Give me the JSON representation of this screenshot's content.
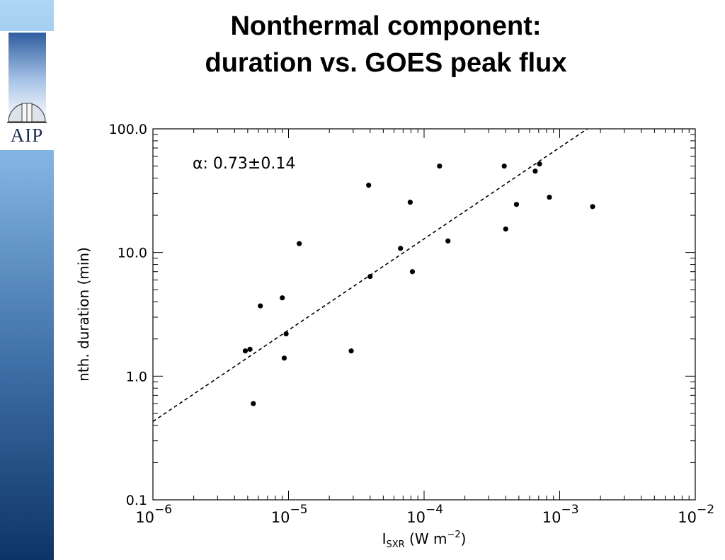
{
  "slide": {
    "title_line1": "Nonthermal component:",
    "title_line2": "duration vs. GOES peak flux",
    "logo_text": "AIP",
    "accent_colors": [
      "#aed5f3",
      "#3e6fa6",
      "#0d3468"
    ]
  },
  "chart_data": {
    "type": "scatter",
    "title": "Nonthermal component: duration vs. GOES peak flux",
    "xlabel": "I_SXR (W m^-2)",
    "ylabel": "nth. duration  (min)",
    "xscale": "log",
    "yscale": "log",
    "xlim": [
      1e-06,
      0.01
    ],
    "ylim": [
      0.1,
      100
    ],
    "xticks": [
      {
        "value": 1e-06,
        "base": "10",
        "exp": "−6"
      },
      {
        "value": 1e-05,
        "base": "10",
        "exp": "−5"
      },
      {
        "value": 0.0001,
        "base": "10",
        "exp": "−4"
      },
      {
        "value": 0.001,
        "base": "10",
        "exp": "−3"
      },
      {
        "value": 0.01,
        "base": "10",
        "exp": "−2"
      }
    ],
    "yticks": [
      {
        "value": 0.1,
        "label": "0.1"
      },
      {
        "value": 1,
        "label": "1.0"
      },
      {
        "value": 10,
        "label": "10.0"
      },
      {
        "value": 100,
        "label": "100.0"
      }
    ],
    "annotation": "α: 0.73±0.14",
    "fit_line": {
      "style": "dashed",
      "points": [
        [
          1e-06,
          0.43
        ],
        [
          0.0016,
          100
        ]
      ]
    },
    "points": [
      {
        "x": 4.8e-06,
        "y": 1.6
      },
      {
        "x": 5.2e-06,
        "y": 1.65
      },
      {
        "x": 5.5e-06,
        "y": 0.6
      },
      {
        "x": 6.2e-06,
        "y": 3.7
      },
      {
        "x": 9e-06,
        "y": 4.3
      },
      {
        "x": 9.3e-06,
        "y": 1.4
      },
      {
        "x": 9.6e-06,
        "y": 2.2
      },
      {
        "x": 1.2e-05,
        "y": 11.8
      },
      {
        "x": 2.9e-05,
        "y": 1.6
      },
      {
        "x": 3.9e-05,
        "y": 35
      },
      {
        "x": 4e-05,
        "y": 6.4
      },
      {
        "x": 6.7e-05,
        "y": 10.8
      },
      {
        "x": 7.9e-05,
        "y": 25.5
      },
      {
        "x": 8.2e-05,
        "y": 7.0
      },
      {
        "x": 0.00013,
        "y": 50
      },
      {
        "x": 0.00015,
        "y": 12.4
      },
      {
        "x": 0.00039,
        "y": 50
      },
      {
        "x": 0.0004,
        "y": 15.5
      },
      {
        "x": 0.00048,
        "y": 24.5
      },
      {
        "x": 0.00066,
        "y": 45.5
      },
      {
        "x": 0.00071,
        "y": 52
      },
      {
        "x": 0.00084,
        "y": 28
      },
      {
        "x": 0.00175,
        "y": 23.5
      }
    ]
  }
}
